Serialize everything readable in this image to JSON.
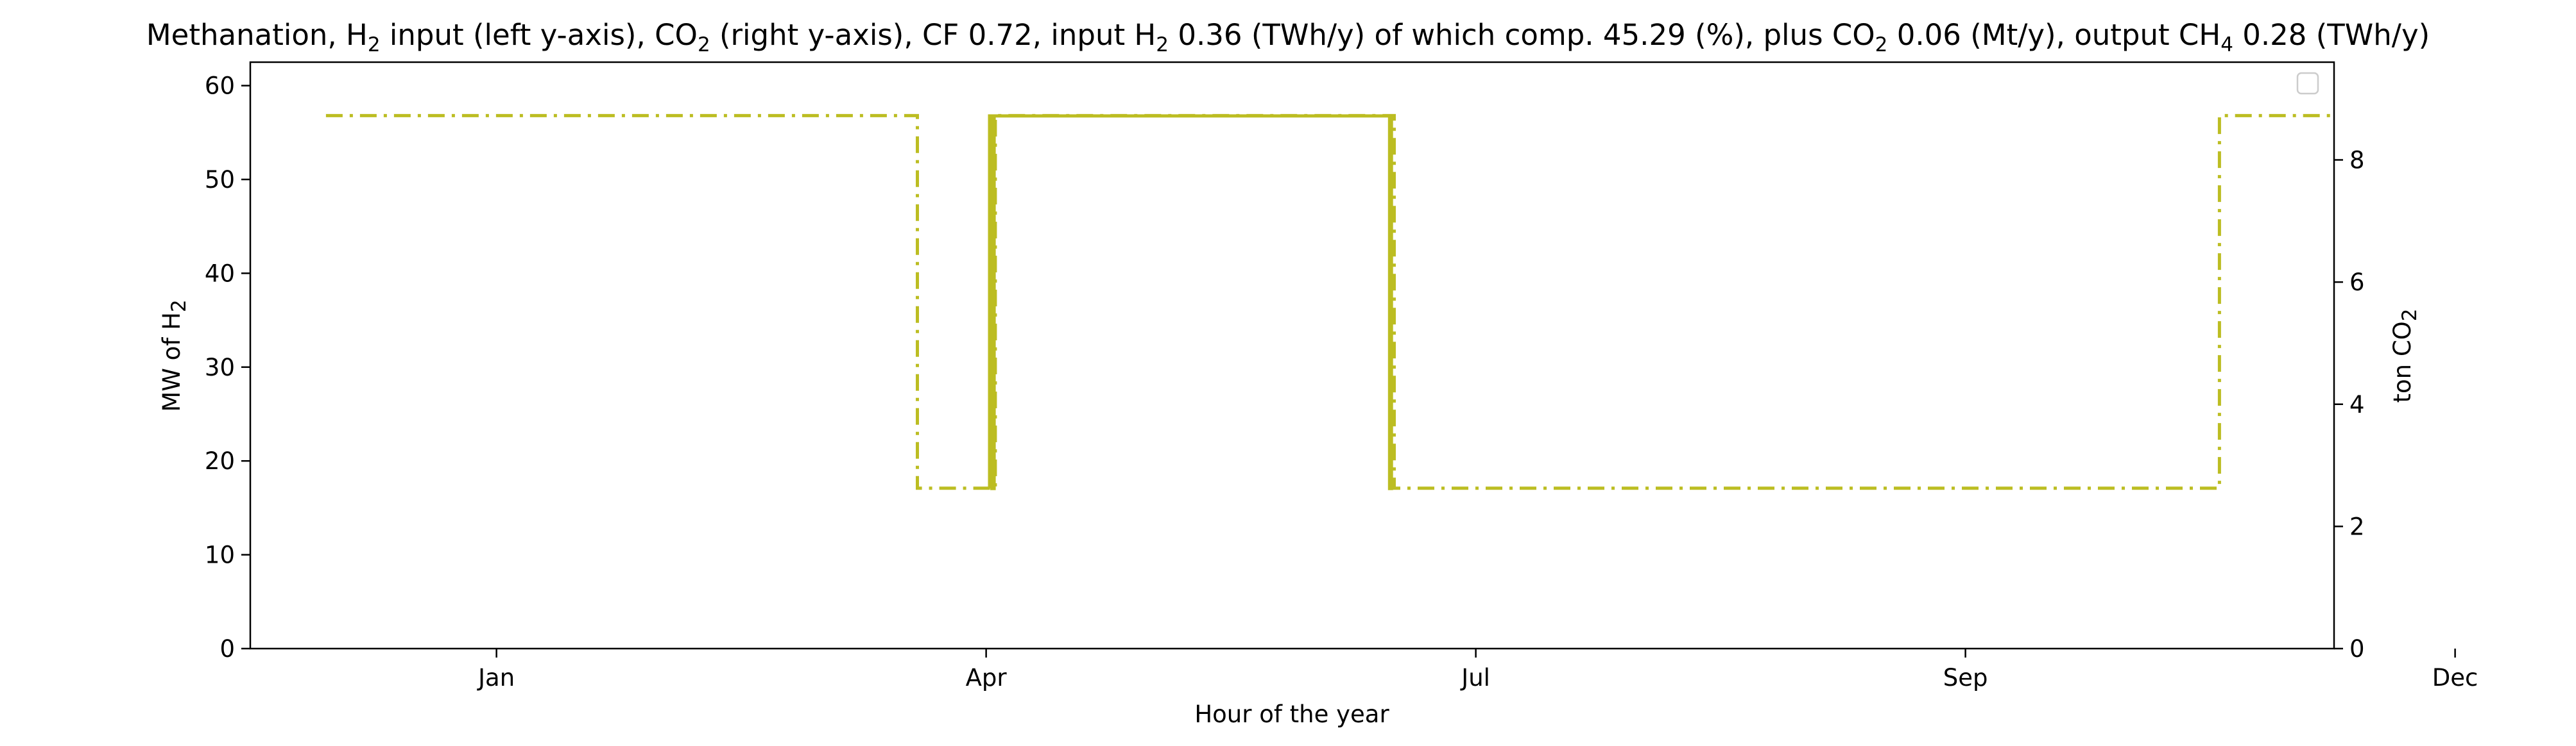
{
  "chart_data": {
    "type": "line",
    "title": {
      "p1": "Methanation, H",
      "p1_sub": "2",
      "p2": " input (left y-axis), CO",
      "p2_sub": "2",
      "p3": " (right y-axis), CF 0.72, input H",
      "p3_sub": "2",
      "p4": " 0.36 (TWh/y) of which comp. 45.29 (%), plus CO",
      "p4_sub": "2",
      "p5": " 0.06 (Mt/y), output CH",
      "p5_sub": "4",
      "p6": " 0.28 (TWh/y)"
    },
    "xlabel": "Hour of the year",
    "ylabel_left": {
      "text": "MW of H",
      "sub": "2"
    },
    "ylabel_right": {
      "text": "ton CO",
      "sub": "2"
    },
    "x_range": [
      -330,
      8760
    ],
    "y_left_range": [
      0,
      62.5
    ],
    "y_right_range": [
      0,
      9.6
    ],
    "x_ticks": [
      {
        "label": "Jan",
        "value": 744
      },
      {
        "label": "Apr",
        "value": 2880
      },
      {
        "label": "Jul",
        "value": 5016
      },
      {
        "label": "Sep",
        "value": 7152
      },
      {
        "label": "Dec",
        "value": 9288
      }
    ],
    "y_left_ticks": [
      0,
      10,
      20,
      30,
      40,
      50,
      60
    ],
    "y_right_ticks": [
      0,
      2,
      4,
      6,
      8
    ],
    "grid": false,
    "legend": {
      "placement": "top-right",
      "entries": []
    },
    "series": [
      {
        "axis": "left",
        "color": "#bcbd22",
        "style": "dash-dot",
        "points": [
          [
            0,
            56.8
          ],
          [
            2580,
            56.8
          ],
          [
            2580,
            17.1
          ],
          [
            2920,
            17.1
          ],
          [
            2920,
            56.8
          ],
          [
            4660,
            56.8
          ],
          [
            4660,
            17.1
          ],
          [
            8260,
            17.1
          ],
          [
            8260,
            56.8
          ],
          [
            8760,
            56.8
          ]
        ]
      },
      {
        "axis": "right",
        "color": "#bcbd22",
        "style": "solid",
        "points": [
          [
            2895,
            2.62
          ],
          [
            2895,
            8.72
          ],
          [
            2905,
            8.72
          ],
          [
            2905,
            2.62
          ],
          [
            2915,
            2.62
          ],
          [
            2915,
            8.72
          ],
          [
            4640,
            8.72
          ],
          [
            4640,
            2.62
          ],
          [
            4648,
            2.62
          ],
          [
            4648,
            8.72
          ]
        ]
      }
    ]
  }
}
